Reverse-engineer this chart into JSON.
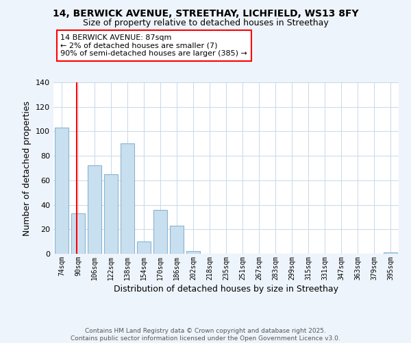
{
  "title1": "14, BERWICK AVENUE, STREETHAY, LICHFIELD, WS13 8FY",
  "title2": "Size of property relative to detached houses in Streethay",
  "xlabel": "Distribution of detached houses by size in Streethay",
  "ylabel": "Number of detached properties",
  "bar_color": "#c8dff0",
  "bar_edge_color": "#8ab4d0",
  "categories": [
    "74sqm",
    "90sqm",
    "106sqm",
    "122sqm",
    "138sqm",
    "154sqm",
    "170sqm",
    "186sqm",
    "202sqm",
    "218sqm",
    "235sqm",
    "251sqm",
    "267sqm",
    "283sqm",
    "299sqm",
    "315sqm",
    "331sqm",
    "347sqm",
    "363sqm",
    "379sqm",
    "395sqm"
  ],
  "values": [
    103,
    33,
    72,
    65,
    90,
    10,
    36,
    23,
    2,
    0,
    0,
    0,
    0,
    0,
    0,
    0,
    0,
    0,
    0,
    0,
    1
  ],
  "ylim": [
    0,
    140
  ],
  "yticks": [
    0,
    20,
    40,
    60,
    80,
    100,
    120,
    140
  ],
  "annotation_title": "14 BERWICK AVENUE: 87sqm",
  "annotation_line1": "← 2% of detached houses are smaller (7)",
  "annotation_line2": "90% of semi-detached houses are larger (385) →",
  "vline_x_index": 1,
  "footer1": "Contains HM Land Registry data © Crown copyright and database right 2025.",
  "footer2": "Contains public sector information licensed under the Open Government Licence v3.0.",
  "bg_color": "#eef4fb",
  "plot_bg_color": "#ffffff",
  "grid_color": "#c8d8e8"
}
